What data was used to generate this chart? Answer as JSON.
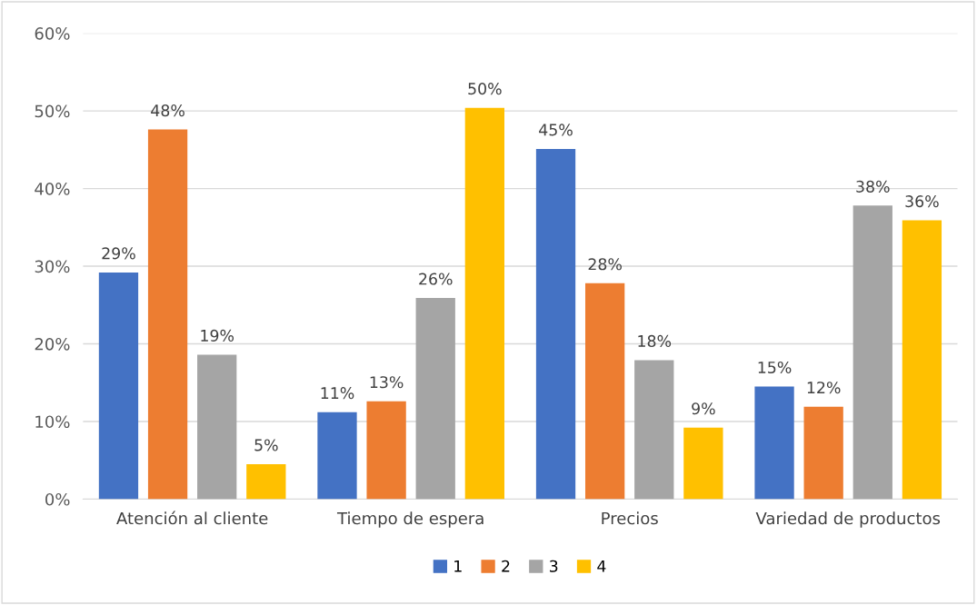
{
  "chart_data": {
    "type": "bar",
    "categories": [
      "Atención al cliente",
      "Tiempo de espera",
      "Precios",
      "Variedad de productos"
    ],
    "series": [
      {
        "name": "1",
        "color": "#4472c4",
        "values": [
          29.2,
          11.2,
          45.1,
          14.5
        ],
        "value_labels": [
          "29%",
          "11%",
          "45%",
          "15%"
        ]
      },
      {
        "name": "2",
        "color": "#ed7d31",
        "values": [
          47.6,
          12.6,
          27.8,
          11.9
        ],
        "value_labels": [
          "48%",
          "13%",
          "28%",
          "12%"
        ]
      },
      {
        "name": "3",
        "color": "#a5a5a5",
        "values": [
          18.6,
          25.9,
          17.9,
          37.8
        ],
        "value_labels": [
          "19%",
          "26%",
          "18%",
          "38%"
        ]
      },
      {
        "name": "4",
        "color": "#ffc000",
        "values": [
          4.5,
          50.4,
          9.2,
          35.9
        ],
        "value_labels": [
          "5%",
          "50%",
          "9%",
          "36%"
        ]
      }
    ],
    "ylim": [
      0,
      60
    ],
    "yticks": [
      {
        "value": 0,
        "label": "0%"
      },
      {
        "value": 10,
        "label": "10%"
      },
      {
        "value": 20,
        "label": "20%"
      },
      {
        "value": 30,
        "label": "30%"
      },
      {
        "value": 40,
        "label": "40%"
      },
      {
        "value": 50,
        "label": "50%"
      },
      {
        "value": 60,
        "label": "60%"
      }
    ],
    "grid": "y",
    "legend": "bottom"
  }
}
